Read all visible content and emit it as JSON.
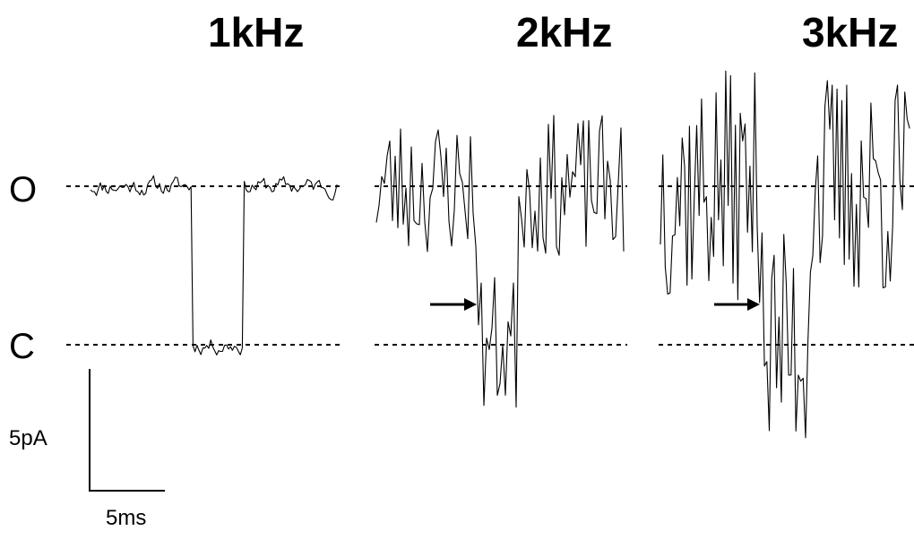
{
  "chart_data": {
    "type": "line",
    "title": "",
    "panels": [
      {
        "label": "1kHz",
        "noise_pA": 0.35,
        "events": [
          {
            "start_ms": 6.5,
            "end_ms": 9.8
          }
        ],
        "arrow_ms": null
      },
      {
        "label": "2kHz",
        "noise_pA": 1.4,
        "events": [
          {
            "start_ms": 6.5,
            "end_ms": 9.2
          }
        ],
        "arrow_ms": 6.6
      },
      {
        "label": "3kHz",
        "noise_pA": 2.3,
        "events": [
          {
            "start_ms": 6.6,
            "end_ms": 9.6
          }
        ],
        "arrow_ms": 6.8
      }
    ],
    "levels": {
      "open_label": "O",
      "closed_label": "C",
      "open_pA": 0,
      "closed_pA": -5
    },
    "duration_ms": 16,
    "scale_bars": {
      "current_label": "5pA",
      "current_pA": 5,
      "time_label": "5ms",
      "time_ms": 5
    },
    "xlabel": "",
    "ylabel": ""
  }
}
